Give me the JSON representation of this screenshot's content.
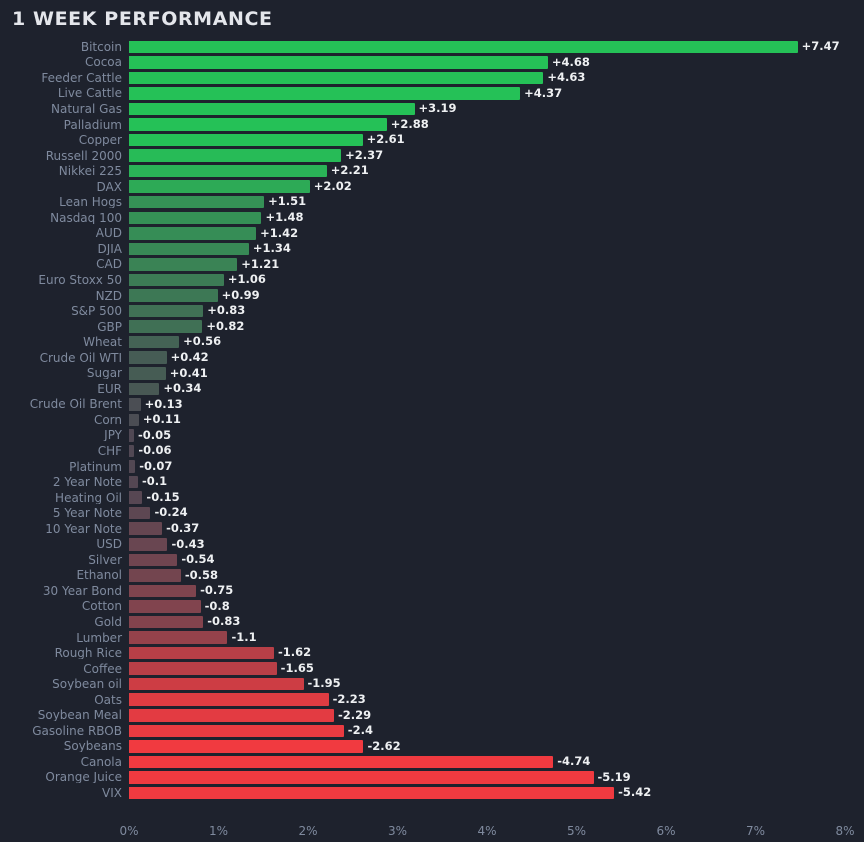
{
  "title": "1 WEEK PERFORMANCE",
  "chart_data": {
    "type": "bar",
    "orientation": "horizontal",
    "title": "1 WEEK PERFORMANCE",
    "xlabel": "",
    "ylabel": "",
    "xlim": [
      0,
      8
    ],
    "x_ticks": [
      "0%",
      "1%",
      "2%",
      "3%",
      "4%",
      "5%",
      "6%",
      "7%",
      "8%"
    ],
    "grid": false,
    "legend": false,
    "note": "bar length = absolute value of 1-week % change; color scale: bright green (strong gain) through gray (flat) to bright red (strong loss)",
    "categories": [
      "Bitcoin",
      "Cocoa",
      "Feeder Cattle",
      "Live Cattle",
      "Natural Gas",
      "Palladium",
      "Copper",
      "Russell 2000",
      "Nikkei 225",
      "DAX",
      "Lean Hogs",
      "Nasdaq 100",
      "AUD",
      "DJIA",
      "CAD",
      "Euro Stoxx 50",
      "NZD",
      "S&P 500",
      "GBP",
      "Wheat",
      "Crude Oil WTI",
      "Sugar",
      "EUR",
      "Crude Oil Brent",
      "Corn",
      "JPY",
      "CHF",
      "Platinum",
      "2 Year Note",
      "Heating Oil",
      "5 Year Note",
      "10 Year Note",
      "USD",
      "Silver",
      "Ethanol",
      "30 Year Bond",
      "Cotton",
      "Gold",
      "Lumber",
      "Rough Rice",
      "Coffee",
      "Soybean oil",
      "Oats",
      "Soybean Meal",
      "Gasoline RBOB",
      "Soybeans",
      "Canola",
      "Orange Juice",
      "VIX"
    ],
    "values": [
      7.47,
      4.68,
      4.63,
      4.37,
      3.19,
      2.88,
      2.61,
      2.37,
      2.21,
      2.02,
      1.51,
      1.48,
      1.42,
      1.34,
      1.21,
      1.06,
      0.99,
      0.83,
      0.82,
      0.56,
      0.42,
      0.41,
      0.34,
      0.13,
      0.11,
      -0.05,
      -0.06,
      -0.07,
      -0.1,
      -0.15,
      -0.24,
      -0.37,
      -0.43,
      -0.54,
      -0.58,
      -0.75,
      -0.8,
      -0.83,
      -1.1,
      -1.62,
      -1.65,
      -1.95,
      -2.23,
      -2.29,
      -2.4,
      -2.62,
      -4.74,
      -5.19,
      -5.42
    ],
    "labels": [
      "+7.47",
      "+4.68",
      "+4.63",
      "+4.37",
      "+3.19",
      "+2.88",
      "+2.61",
      "+2.37",
      "+2.21",
      "+2.02",
      "+1.51",
      "+1.48",
      "+1.42",
      "+1.34",
      "+1.21",
      "+1.06",
      "+0.99",
      "+0.83",
      "+0.82",
      "+0.56",
      "+0.42",
      "+0.41",
      "+0.34",
      "+0.13",
      "+0.11",
      "-0.05",
      "-0.06",
      "-0.07",
      "-0.1",
      "-0.15",
      "-0.24",
      "-0.37",
      "-0.43",
      "-0.54",
      "-0.58",
      "-0.75",
      "-0.8",
      "-0.83",
      "-1.1",
      "-1.62",
      "-1.65",
      "-1.95",
      "-2.23",
      "-2.29",
      "-2.4",
      "-2.62",
      "-4.74",
      "-5.19",
      "-5.42"
    ],
    "colors": {
      "background": "#1e222d",
      "positive_full": "#25c157",
      "negative_full": "#f13a40",
      "neutral": "#4d4854",
      "title_text": "#e4e6eb",
      "category_text": "#7f8a9e",
      "value_text": "#eef0f2",
      "axis_text": "#7f8a9e"
    }
  }
}
